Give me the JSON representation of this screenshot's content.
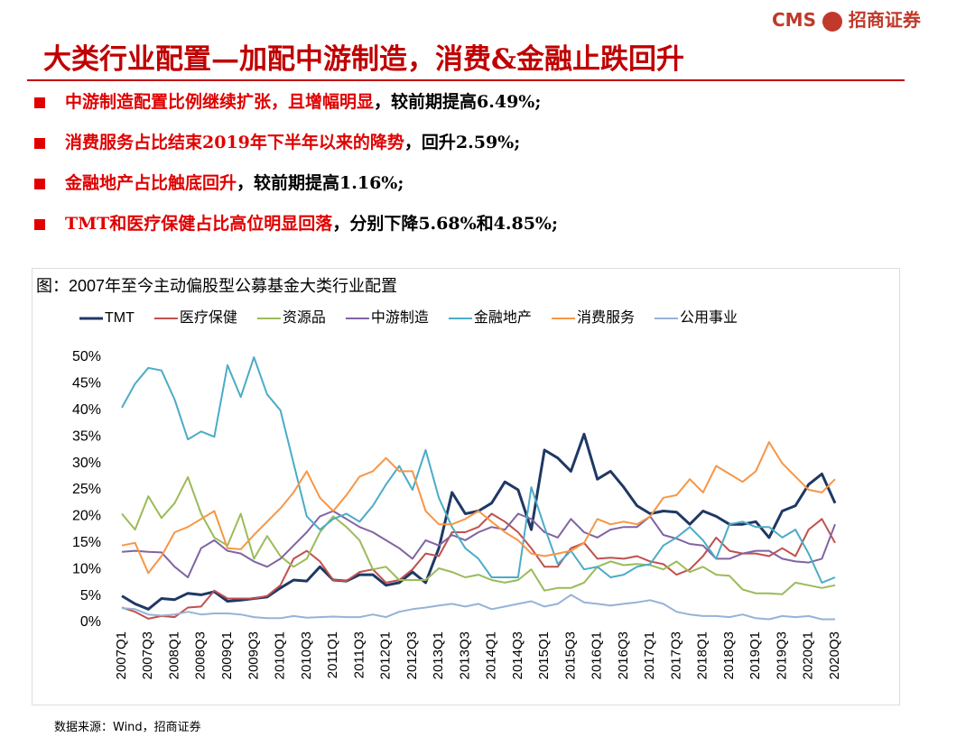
{
  "header": {
    "brand": "CMS",
    "brand_cn": "招商证券",
    "title": "大类行业配置—加配中游制造，消费&金融止跌回升"
  },
  "bullets": [
    {
      "highlight": "中游制造配置比例继续扩张，且增幅明显",
      "text": "，较前期提高6.49%;"
    },
    {
      "highlight": "消费服务占比结束2019年下半年以来的降势",
      "text": "，回升2.59%;"
    },
    {
      "highlight": "金融地产占比触底回升",
      "text": "，较前期提高1.16%;"
    },
    {
      "highlight": "TMT和医疗保健占比高位明显回落",
      "text": "，分别下降5.68%和4.85%;"
    }
  ],
  "chart_data": {
    "type": "line",
    "title": "图：2007年至今主动偏股型公募基金大类行业配置",
    "categories": [
      "2007Q1",
      null,
      "2007Q3",
      null,
      "2008Q1",
      null,
      "2008Q3",
      null,
      "2009Q1",
      null,
      "2009Q3",
      null,
      "2010Q1",
      null,
      "2010Q3",
      null,
      "2011Q1",
      null,
      "2011Q3",
      null,
      "2012Q1",
      null,
      "2012Q3",
      null,
      "2013Q1",
      null,
      "2013Q3",
      null,
      "2014Q1",
      null,
      "2014Q3",
      null,
      "2015Q1",
      null,
      "2015Q3",
      null,
      "2016Q1",
      null,
      "2016Q3",
      null,
      "2017Q1",
      null,
      "2017Q3",
      null,
      "2018Q1",
      null,
      "2018Q3",
      null,
      "2019Q1",
      null,
      "2019Q3",
      null,
      "2020Q1",
      null,
      "2020Q3"
    ],
    "ylim": [
      0,
      50
    ],
    "yticks": [
      {
        "value": 0,
        "label": "0%"
      },
      {
        "value": 5,
        "label": "5%"
      },
      {
        "value": 10,
        "label": "10%"
      },
      {
        "value": 15,
        "label": "15%"
      },
      {
        "value": 20,
        "label": "20%"
      },
      {
        "value": 25,
        "label": "25%"
      },
      {
        "value": 30,
        "label": "30%"
      },
      {
        "value": 35,
        "label": "35%"
      },
      {
        "value": 40,
        "label": "40%"
      },
      {
        "value": 45,
        "label": "45%"
      },
      {
        "value": 50,
        "label": "50%"
      }
    ],
    "grid": false,
    "legend": "top",
    "series": [
      {
        "name": "TMT",
        "color": "#1f3864",
        "values": [
          5,
          3.5,
          2.5,
          4.5,
          4.3,
          5.5,
          5.2,
          5.8,
          4,
          4.2,
          4.5,
          4.8,
          6.5,
          8,
          7.8,
          10.5,
          8,
          7.8,
          9,
          9,
          7,
          7.5,
          9.5,
          7.5,
          14,
          24.5,
          20.5,
          21,
          22.5,
          26.5,
          25,
          17.5,
          32.5,
          31,
          28.5,
          35.5,
          27,
          28.5,
          25.5,
          22,
          20.5,
          21,
          20.8,
          18.5,
          21,
          20,
          18.5,
          18.5,
          19,
          16,
          21,
          22,
          26,
          28,
          22.5
        ]
      },
      {
        "name": "医疗保健",
        "color": "#c0504d",
        "values": [
          2.8,
          2,
          0.7,
          1.2,
          1,
          2.8,
          3,
          6,
          4.5,
          4.5,
          4.5,
          5,
          7,
          12,
          13.5,
          11.5,
          8,
          7.8,
          9.5,
          10,
          7.5,
          8,
          10,
          13,
          12.5,
          17,
          17,
          18,
          20.5,
          19,
          17,
          14,
          10.5,
          10.5,
          14,
          15,
          12,
          12.2,
          12,
          12.5,
          11.5,
          11,
          9,
          10,
          12.5,
          16,
          13.5,
          13,
          13,
          12.5,
          14,
          12.5,
          17.5,
          19.5,
          15
        ]
      },
      {
        "name": "资源品",
        "color": "#9bbb59",
        "values": [
          20.5,
          17.5,
          23.8,
          19.7,
          22.5,
          27.4,
          20.5,
          16,
          14.5,
          20.5,
          12,
          16.3,
          12.5,
          10.5,
          12,
          17,
          20,
          18,
          15.5,
          10,
          10.5,
          8,
          8,
          8,
          10.2,
          9.5,
          8.5,
          9,
          8,
          7.5,
          8,
          10,
          6,
          6.5,
          6.5,
          7.5,
          10.5,
          11.5,
          10.8,
          11,
          10.8,
          10,
          11.5,
          9.5,
          10.5,
          9,
          8.8,
          6.2,
          5.5,
          5.5,
          5.3,
          7.5,
          7,
          6.5,
          7
        ]
      },
      {
        "name": "中游制造",
        "color": "#8064a2",
        "values": [
          13.3,
          13.5,
          13.3,
          13.2,
          10.5,
          8.5,
          14,
          15.5,
          13.5,
          13,
          11.5,
          10.5,
          12,
          14.5,
          17,
          20,
          21,
          19.5,
          18,
          17,
          15.5,
          14,
          12,
          15.5,
          14.5,
          16.5,
          15.5,
          17,
          18,
          17.5,
          20.5,
          19.5,
          17,
          16,
          19.5,
          17,
          16,
          17.5,
          18,
          18,
          20,
          16.5,
          15.8,
          14.8,
          14.5,
          12,
          12,
          13,
          13.5,
          13.5,
          12,
          11.5,
          11.3,
          12,
          18.5
        ]
      },
      {
        "name": "金融地产",
        "color": "#4bacc6",
        "values": [
          40.5,
          45,
          48,
          47.5,
          42,
          34.5,
          36,
          35,
          48.5,
          42.5,
          50,
          43,
          40,
          30,
          20,
          17.5,
          19.5,
          20.5,
          19,
          22,
          26,
          29.5,
          25,
          32.5,
          23.5,
          18,
          14,
          12,
          8.5,
          8.5,
          8.5,
          25.5,
          18,
          11,
          13.5,
          10,
          10.5,
          8.5,
          9,
          10.5,
          11,
          14.5,
          16,
          18,
          15.5,
          12,
          18.5,
          19,
          18,
          18,
          16,
          17.5,
          13,
          7.5,
          8.5
        ]
      },
      {
        "name": "消费服务",
        "color": "#f79646",
        "values": [
          14.5,
          15,
          9.3,
          12.5,
          17,
          18,
          19.5,
          21,
          14,
          13.8,
          16.5,
          19,
          21.5,
          24.5,
          28.5,
          23.5,
          21,
          24,
          27.5,
          28.5,
          31,
          28.5,
          28.5,
          21,
          18.5,
          18.5,
          19.5,
          21,
          19,
          17,
          15.5,
          13,
          12.5,
          13,
          13.5,
          15,
          19.5,
          18.5,
          19,
          18.5,
          20,
          23.5,
          24,
          27,
          24.5,
          29.5,
          28,
          26.5,
          28.5,
          34,
          30,
          27.5,
          25,
          24.5,
          27
        ]
      },
      {
        "name": "公用事业",
        "color": "#95b3d7",
        "values": [
          2.7,
          2.5,
          1.5,
          1.3,
          1.5,
          2,
          1.5,
          1.7,
          1.7,
          1.5,
          1,
          0.8,
          0.8,
          1.2,
          0.9,
          1,
          1.1,
          1,
          1,
          1.5,
          1,
          2,
          2.5,
          2.8,
          3.2,
          3.5,
          3,
          3.5,
          2.5,
          3,
          3.5,
          4,
          3,
          3.5,
          5.2,
          3.8,
          3.5,
          3.2,
          3.5,
          3.8,
          4.2,
          3.5,
          2,
          1.5,
          1.2,
          1.2,
          1,
          1.5,
          0.8,
          0.6,
          1.2,
          1,
          1.2,
          0.6,
          0.6
        ]
      }
    ]
  },
  "source": "数据来源：Wind，招商证券"
}
